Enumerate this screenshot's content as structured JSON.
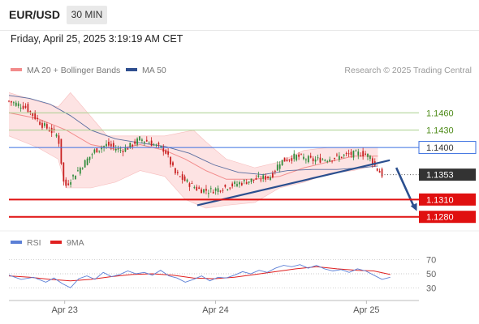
{
  "header": {
    "symbol": "EUR/USD",
    "timeframe": "30 MIN"
  },
  "datetime": "Friday, April 25, 2025 3:19:19 AM CET",
  "copyright": "Research © 2025 Trading Central",
  "colors": {
    "bollinger": "#f28b8b",
    "bollinger_fill": "#fde3e3",
    "ma50": "#2f4f8f",
    "support": "#e01010",
    "resistance": "#3a6fe0",
    "target_green": "#a8d08d",
    "candle_up": "#2e8b3a",
    "candle_down": "#c81e1e",
    "rsi": "#5b7fd6",
    "rsi_ma": "#e02020",
    "arrow": "#2b4f8f"
  },
  "chart_data": [
    {
      "type": "candlestick",
      "legend": [
        {
          "name": "MA 20 + Bollinger Bands",
          "color": "#f28b8b"
        },
        {
          "name": "MA 50",
          "color": "#2f4f8f"
        }
      ],
      "x_labels": [
        "Apr 23",
        "Apr 24",
        "Apr 25"
      ],
      "ylim": [
        1.126,
        1.1515
      ],
      "levels": [
        {
          "value": 1.146,
          "label": "1.1460",
          "kind": "target"
        },
        {
          "value": 1.143,
          "label": "1.1430",
          "kind": "target"
        },
        {
          "value": 1.14,
          "label": "1.1400",
          "kind": "resistance"
        },
        {
          "value": 1.1353,
          "label": "1.1353",
          "kind": "last"
        },
        {
          "value": 1.131,
          "label": "1.1310",
          "kind": "support"
        },
        {
          "value": 1.128,
          "label": "1.1280",
          "kind": "support"
        }
      ],
      "trendline": {
        "from": [
          0,
          1.13
        ],
        "to": [
          0.83,
          1.1378
        ]
      },
      "forecast_arrow": {
        "from": [
          0.83,
          1.1365
        ],
        "to": [
          0.9,
          1.129
        ]
      },
      "close_path": [
        [
          0,
          1.148
        ],
        [
          0.04,
          1.147
        ],
        [
          0.08,
          1.144
        ],
        [
          0.12,
          1.142
        ],
        [
          0.135,
          1.133
        ],
        [
          0.15,
          1.1345
        ],
        [
          0.18,
          1.137
        ],
        [
          0.21,
          1.1395
        ],
        [
          0.24,
          1.1405
        ],
        [
          0.27,
          1.1395
        ],
        [
          0.29,
          1.14
        ],
        [
          0.32,
          1.1415
        ],
        [
          0.34,
          1.141
        ],
        [
          0.36,
          1.1402
        ],
        [
          0.38,
          1.1396
        ],
        [
          0.39,
          1.138
        ],
        [
          0.405,
          1.1355
        ],
        [
          0.43,
          1.1342
        ],
        [
          0.46,
          1.1328
        ],
        [
          0.49,
          1.1325
        ],
        [
          0.52,
          1.133
        ],
        [
          0.56,
          1.1338
        ],
        [
          0.6,
          1.1345
        ],
        [
          0.64,
          1.135
        ],
        [
          0.66,
          1.1375
        ],
        [
          0.7,
          1.1385
        ],
        [
          0.74,
          1.1378
        ],
        [
          0.77,
          1.138
        ],
        [
          0.8,
          1.1383
        ],
        [
          0.83,
          1.1388
        ],
        [
          0.86,
          1.139
        ],
        [
          0.88,
          1.1385
        ],
        [
          0.895,
          1.1365
        ],
        [
          0.91,
          1.1353
        ]
      ],
      "bb_center_path": [
        [
          0,
          1.146
        ],
        [
          0.07,
          1.145
        ],
        [
          0.14,
          1.143
        ],
        [
          0.2,
          1.1405
        ],
        [
          0.26,
          1.1397
        ],
        [
          0.32,
          1.1405
        ],
        [
          0.38,
          1.1395
        ],
        [
          0.43,
          1.138
        ],
        [
          0.48,
          1.136
        ],
        [
          0.53,
          1.1345
        ],
        [
          0.6,
          1.1345
        ],
        [
          0.66,
          1.135
        ],
        [
          0.72,
          1.1365
        ],
        [
          0.78,
          1.1375
        ],
        [
          0.84,
          1.1385
        ],
        [
          0.9,
          1.1385
        ]
      ],
      "bb_upper_path": [
        [
          0,
          1.1495
        ],
        [
          0.07,
          1.148
        ],
        [
          0.12,
          1.147
        ],
        [
          0.15,
          1.1495
        ],
        [
          0.18,
          1.147
        ],
        [
          0.24,
          1.142
        ],
        [
          0.32,
          1.142
        ],
        [
          0.38,
          1.142
        ],
        [
          0.45,
          1.143
        ],
        [
          0.48,
          1.141
        ],
        [
          0.53,
          1.138
        ],
        [
          0.6,
          1.1365
        ],
        [
          0.66,
          1.1375
        ],
        [
          0.72,
          1.1395
        ],
        [
          0.78,
          1.14
        ],
        [
          0.84,
          1.14
        ],
        [
          0.9,
          1.14
        ]
      ],
      "bb_lower_path": [
        [
          0,
          1.142
        ],
        [
          0.07,
          1.14
        ],
        [
          0.12,
          1.138
        ],
        [
          0.14,
          1.133
        ],
        [
          0.2,
          1.133
        ],
        [
          0.26,
          1.134
        ],
        [
          0.32,
          1.136
        ],
        [
          0.38,
          1.135
        ],
        [
          0.43,
          1.131
        ],
        [
          0.48,
          1.1295
        ],
        [
          0.53,
          1.13
        ],
        [
          0.6,
          1.1305
        ],
        [
          0.66,
          1.133
        ],
        [
          0.72,
          1.134
        ],
        [
          0.78,
          1.1355
        ],
        [
          0.84,
          1.136
        ],
        [
          0.9,
          1.137
        ]
      ],
      "ma50_path": [
        [
          0,
          1.149
        ],
        [
          0.05,
          1.1485
        ],
        [
          0.1,
          1.1475
        ],
        [
          0.15,
          1.1455
        ],
        [
          0.2,
          1.143
        ],
        [
          0.26,
          1.1415
        ],
        [
          0.32,
          1.1408
        ],
        [
          0.38,
          1.1402
        ],
        [
          0.44,
          1.139
        ],
        [
          0.5,
          1.137
        ],
        [
          0.56,
          1.1357
        ],
        [
          0.62,
          1.1353
        ],
        [
          0.68,
          1.136
        ],
        [
          0.74,
          1.1362
        ],
        [
          0.8,
          1.1362
        ],
        [
          0.86,
          1.1365
        ],
        [
          0.9,
          1.1368
        ]
      ]
    },
    {
      "type": "line",
      "legend": [
        {
          "name": "RSI",
          "color": "#5b7fd6"
        },
        {
          "name": "9MA",
          "color": "#e02020"
        }
      ],
      "ylim": [
        20,
        80
      ],
      "y_ticks": [
        70,
        50,
        30
      ],
      "rsi_path": [
        [
          0,
          48
        ],
        [
          0.03,
          42
        ],
        [
          0.06,
          45
        ],
        [
          0.09,
          38
        ],
        [
          0.11,
          44
        ],
        [
          0.13,
          36
        ],
        [
          0.15,
          30
        ],
        [
          0.17,
          43
        ],
        [
          0.19,
          47
        ],
        [
          0.21,
          42
        ],
        [
          0.23,
          52
        ],
        [
          0.25,
          46
        ],
        [
          0.27,
          49
        ],
        [
          0.29,
          54
        ],
        [
          0.31,
          50
        ],
        [
          0.33,
          52
        ],
        [
          0.35,
          48
        ],
        [
          0.37,
          55
        ],
        [
          0.39,
          47
        ],
        [
          0.41,
          44
        ],
        [
          0.43,
          38
        ],
        [
          0.45,
          42
        ],
        [
          0.47,
          47
        ],
        [
          0.49,
          40
        ],
        [
          0.51,
          45
        ],
        [
          0.53,
          44
        ],
        [
          0.55,
          48
        ],
        [
          0.57,
          53
        ],
        [
          0.59,
          50
        ],
        [
          0.61,
          55
        ],
        [
          0.63,
          52
        ],
        [
          0.65,
          58
        ],
        [
          0.67,
          62
        ],
        [
          0.69,
          60
        ],
        [
          0.71,
          63
        ],
        [
          0.73,
          58
        ],
        [
          0.75,
          62
        ],
        [
          0.77,
          57
        ],
        [
          0.79,
          54
        ],
        [
          0.81,
          56
        ],
        [
          0.83,
          52
        ],
        [
          0.85,
          57
        ],
        [
          0.87,
          54
        ],
        [
          0.89,
          48
        ],
        [
          0.91,
          42
        ],
        [
          0.93,
          45
        ]
      ],
      "ma_path": [
        [
          0,
          47
        ],
        [
          0.05,
          45
        ],
        [
          0.1,
          42
        ],
        [
          0.15,
          40
        ],
        [
          0.2,
          42
        ],
        [
          0.25,
          46
        ],
        [
          0.3,
          49
        ],
        [
          0.35,
          50
        ],
        [
          0.4,
          48
        ],
        [
          0.45,
          44
        ],
        [
          0.5,
          43
        ],
        [
          0.55,
          45
        ],
        [
          0.6,
          49
        ],
        [
          0.65,
          53
        ],
        [
          0.7,
          57
        ],
        [
          0.75,
          60
        ],
        [
          0.8,
          57
        ],
        [
          0.85,
          55
        ],
        [
          0.89,
          54
        ],
        [
          0.93,
          49
        ]
      ]
    }
  ]
}
